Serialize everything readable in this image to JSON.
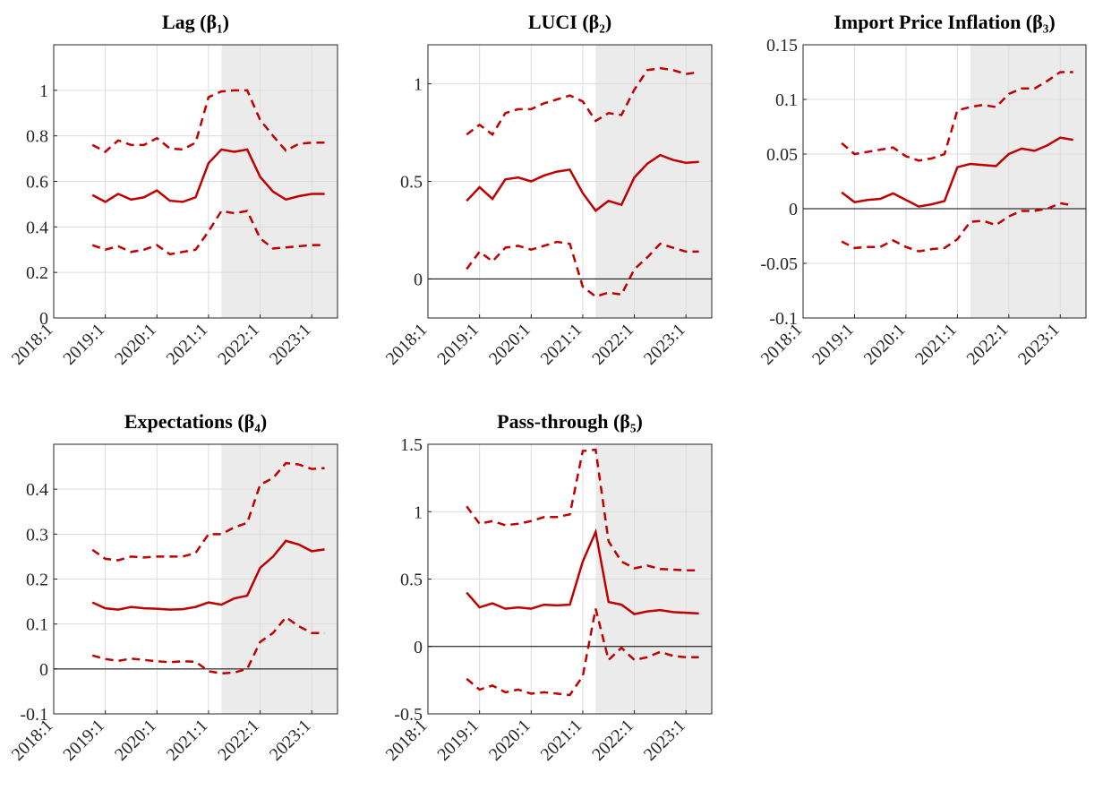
{
  "chart_data": [
    {
      "type": "line",
      "title": "Lag (β₁)",
      "x": [
        "2018:4",
        "2019:1",
        "2019:2",
        "2019:3",
        "2019:4",
        "2020:1",
        "2020:2",
        "2020:3",
        "2020:4",
        "2021:1",
        "2021:2",
        "2021:3",
        "2021:4",
        "2022:1",
        "2022:2",
        "2022:3",
        "2022:4",
        "2023:1",
        "2023:2"
      ],
      "xlim": [
        "2018:1",
        "2023:3"
      ],
      "xticks": [
        "2018:1",
        "2019:1",
        "2020:1",
        "2021:1",
        "2022:1",
        "2023:1"
      ],
      "ylim": [
        0,
        1.2
      ],
      "yticks": [
        0,
        0.2,
        0.4,
        0.6,
        0.8,
        1
      ],
      "grid": true,
      "zero_line": false,
      "shade_start": "2021:2",
      "series": [
        {
          "color": "#c00000",
          "style": "solid",
          "values": [
            0.54,
            0.51,
            0.545,
            0.52,
            0.53,
            0.56,
            0.515,
            0.51,
            0.53,
            0.68,
            0.74,
            0.73,
            0.74,
            0.62,
            0.555,
            0.52,
            0.535,
            0.545,
            0.545
          ]
        },
        {
          "color": "#c00000",
          "style": "dashed",
          "values": [
            0.76,
            0.73,
            0.78,
            0.76,
            0.76,
            0.79,
            0.745,
            0.74,
            0.77,
            0.97,
            0.995,
            1.0,
            1.0,
            0.87,
            0.8,
            0.735,
            0.765,
            0.77,
            0.77
          ]
        },
        {
          "color": "#c00000",
          "style": "dashed",
          "values": [
            0.32,
            0.3,
            0.315,
            0.29,
            0.3,
            0.32,
            0.28,
            0.29,
            0.3,
            0.38,
            0.47,
            0.46,
            0.47,
            0.35,
            0.305,
            0.31,
            0.315,
            0.32,
            0.32
          ]
        }
      ]
    },
    {
      "type": "line",
      "title": "LUCI (β₂)",
      "x": [
        "2018:4",
        "2019:1",
        "2019:2",
        "2019:3",
        "2019:4",
        "2020:1",
        "2020:2",
        "2020:3",
        "2020:4",
        "2021:1",
        "2021:2",
        "2021:3",
        "2021:4",
        "2022:1",
        "2022:2",
        "2022:3",
        "2022:4",
        "2023:1",
        "2023:2"
      ],
      "xlim": [
        "2018:1",
        "2023:3"
      ],
      "xticks": [
        "2018:1",
        "2019:1",
        "2020:1",
        "2021:1",
        "2022:1",
        "2023:1"
      ],
      "ylim": [
        -0.2,
        1.2
      ],
      "yticks": [
        0,
        0.5,
        1
      ],
      "grid": true,
      "zero_line": true,
      "shade_start": "2021:2",
      "series": [
        {
          "color": "#c00000",
          "style": "solid",
          "values": [
            0.4,
            0.47,
            0.41,
            0.51,
            0.52,
            0.5,
            0.53,
            0.55,
            0.56,
            0.44,
            0.35,
            0.4,
            0.38,
            0.52,
            0.59,
            0.635,
            0.61,
            0.595,
            0.6
          ]
        },
        {
          "color": "#c00000",
          "style": "dashed",
          "values": [
            0.74,
            0.79,
            0.74,
            0.85,
            0.87,
            0.87,
            0.9,
            0.92,
            0.94,
            0.91,
            0.81,
            0.85,
            0.84,
            0.97,
            1.07,
            1.08,
            1.07,
            1.05,
            1.06
          ]
        },
        {
          "color": "#c00000",
          "style": "dashed",
          "values": [
            0.05,
            0.14,
            0.09,
            0.16,
            0.17,
            0.15,
            0.17,
            0.19,
            0.18,
            -0.04,
            -0.09,
            -0.07,
            -0.08,
            0.05,
            0.11,
            0.18,
            0.16,
            0.14,
            0.14
          ]
        }
      ]
    },
    {
      "type": "line",
      "title": "Import Price Inflation (β₃)",
      "x": [
        "2018:4",
        "2019:1",
        "2019:2",
        "2019:3",
        "2019:4",
        "2020:1",
        "2020:2",
        "2020:3",
        "2020:4",
        "2021:1",
        "2021:2",
        "2021:3",
        "2021:4",
        "2022:1",
        "2022:2",
        "2022:3",
        "2022:4",
        "2023:1",
        "2023:2"
      ],
      "xlim": [
        "2018:1",
        "2023:3"
      ],
      "xticks": [
        "2018:1",
        "2019:1",
        "2020:1",
        "2021:1",
        "2022:1",
        "2023:1"
      ],
      "ylim": [
        -0.1,
        0.15
      ],
      "yticks": [
        -0.1,
        -0.05,
        0,
        0.05,
        0.1,
        0.15
      ],
      "grid": true,
      "zero_line": true,
      "shade_start": "2021:2",
      "series": [
        {
          "color": "#c00000",
          "style": "solid",
          "values": [
            0.015,
            0.006,
            0.008,
            0.009,
            0.014,
            0.008,
            0.002,
            0.004,
            0.007,
            0.038,
            0.041,
            0.04,
            0.039,
            0.05,
            0.055,
            0.053,
            0.058,
            0.065,
            0.063
          ]
        },
        {
          "color": "#c00000",
          "style": "dashed",
          "values": [
            0.06,
            0.05,
            0.052,
            0.054,
            0.056,
            0.048,
            0.044,
            0.046,
            0.05,
            0.09,
            0.093,
            0.095,
            0.093,
            0.105,
            0.11,
            0.11,
            0.117,
            0.125,
            0.125
          ]
        },
        {
          "color": "#c00000",
          "style": "dashed",
          "values": [
            -0.03,
            -0.036,
            -0.035,
            -0.035,
            -0.029,
            -0.035,
            -0.039,
            -0.037,
            -0.036,
            -0.028,
            -0.012,
            -0.011,
            -0.015,
            -0.007,
            -0.002,
            -0.002,
            0.0,
            0.005,
            0.003
          ]
        }
      ]
    },
    {
      "type": "line",
      "title": "Expectations (β₄)",
      "x": [
        "2018:4",
        "2019:1",
        "2019:2",
        "2019:3",
        "2019:4",
        "2020:1",
        "2020:2",
        "2020:3",
        "2020:4",
        "2021:1",
        "2021:2",
        "2021:3",
        "2021:4",
        "2022:1",
        "2022:2",
        "2022:3",
        "2022:4",
        "2023:1",
        "2023:2"
      ],
      "xlim": [
        "2018:1",
        "2023:3"
      ],
      "xticks": [
        "2018:1",
        "2019:1",
        "2020:1",
        "2021:1",
        "2022:1",
        "2023:1"
      ],
      "ylim": [
        -0.1,
        0.5
      ],
      "yticks": [
        -0.1,
        0,
        0.1,
        0.2,
        0.3,
        0.4
      ],
      "grid": true,
      "zero_line": true,
      "shade_start": "2021:2",
      "series": [
        {
          "color": "#c00000",
          "style": "solid",
          "values": [
            0.148,
            0.135,
            0.132,
            0.138,
            0.135,
            0.134,
            0.132,
            0.133,
            0.138,
            0.148,
            0.143,
            0.157,
            0.163,
            0.225,
            0.25,
            0.285,
            0.277,
            0.262,
            0.266
          ]
        },
        {
          "color": "#c00000",
          "style": "dashed",
          "values": [
            0.265,
            0.245,
            0.242,
            0.25,
            0.248,
            0.25,
            0.25,
            0.25,
            0.258,
            0.3,
            0.3,
            0.315,
            0.325,
            0.41,
            0.425,
            0.458,
            0.455,
            0.445,
            0.447
          ]
        },
        {
          "color": "#c00000",
          "style": "dashed",
          "values": [
            0.03,
            0.022,
            0.018,
            0.023,
            0.02,
            0.017,
            0.015,
            0.017,
            0.016,
            -0.005,
            -0.01,
            -0.008,
            0.0,
            0.06,
            0.08,
            0.115,
            0.095,
            0.08,
            0.08
          ]
        }
      ]
    },
    {
      "type": "line",
      "title": "Pass-through (β₅)",
      "x": [
        "2018:4",
        "2019:1",
        "2019:2",
        "2019:3",
        "2019:4",
        "2020:1",
        "2020:2",
        "2020:3",
        "2020:4",
        "2021:1",
        "2021:2",
        "2021:3",
        "2021:4",
        "2022:1",
        "2022:2",
        "2022:3",
        "2022:4",
        "2023:1",
        "2023:2"
      ],
      "xlim": [
        "2018:1",
        "2023:3"
      ],
      "xticks": [
        "2018:1",
        "2019:1",
        "2020:1",
        "2021:1",
        "2022:1",
        "2023:1"
      ],
      "ylim": [
        -0.5,
        1.5
      ],
      "yticks": [
        -0.5,
        0,
        0.5,
        1,
        1.5
      ],
      "grid": true,
      "zero_line": true,
      "shade_start": "2021:2",
      "series": [
        {
          "color": "#c00000",
          "style": "solid",
          "values": [
            0.4,
            0.29,
            0.32,
            0.28,
            0.29,
            0.28,
            0.31,
            0.305,
            0.31,
            0.63,
            0.85,
            0.33,
            0.31,
            0.24,
            0.26,
            0.27,
            0.255,
            0.25,
            0.245
          ]
        },
        {
          "color": "#c00000",
          "style": "dashed",
          "values": [
            1.04,
            0.91,
            0.93,
            0.9,
            0.91,
            0.93,
            0.96,
            0.96,
            0.98,
            1.45,
            1.46,
            0.78,
            0.63,
            0.58,
            0.6,
            0.575,
            0.57,
            0.565,
            0.565
          ]
        },
        {
          "color": "#c00000",
          "style": "dashed",
          "values": [
            -0.24,
            -0.32,
            -0.29,
            -0.34,
            -0.32,
            -0.35,
            -0.34,
            -0.35,
            -0.36,
            -0.22,
            0.28,
            -0.1,
            -0.01,
            -0.1,
            -0.08,
            -0.04,
            -0.07,
            -0.08,
            -0.08
          ]
        }
      ]
    }
  ]
}
